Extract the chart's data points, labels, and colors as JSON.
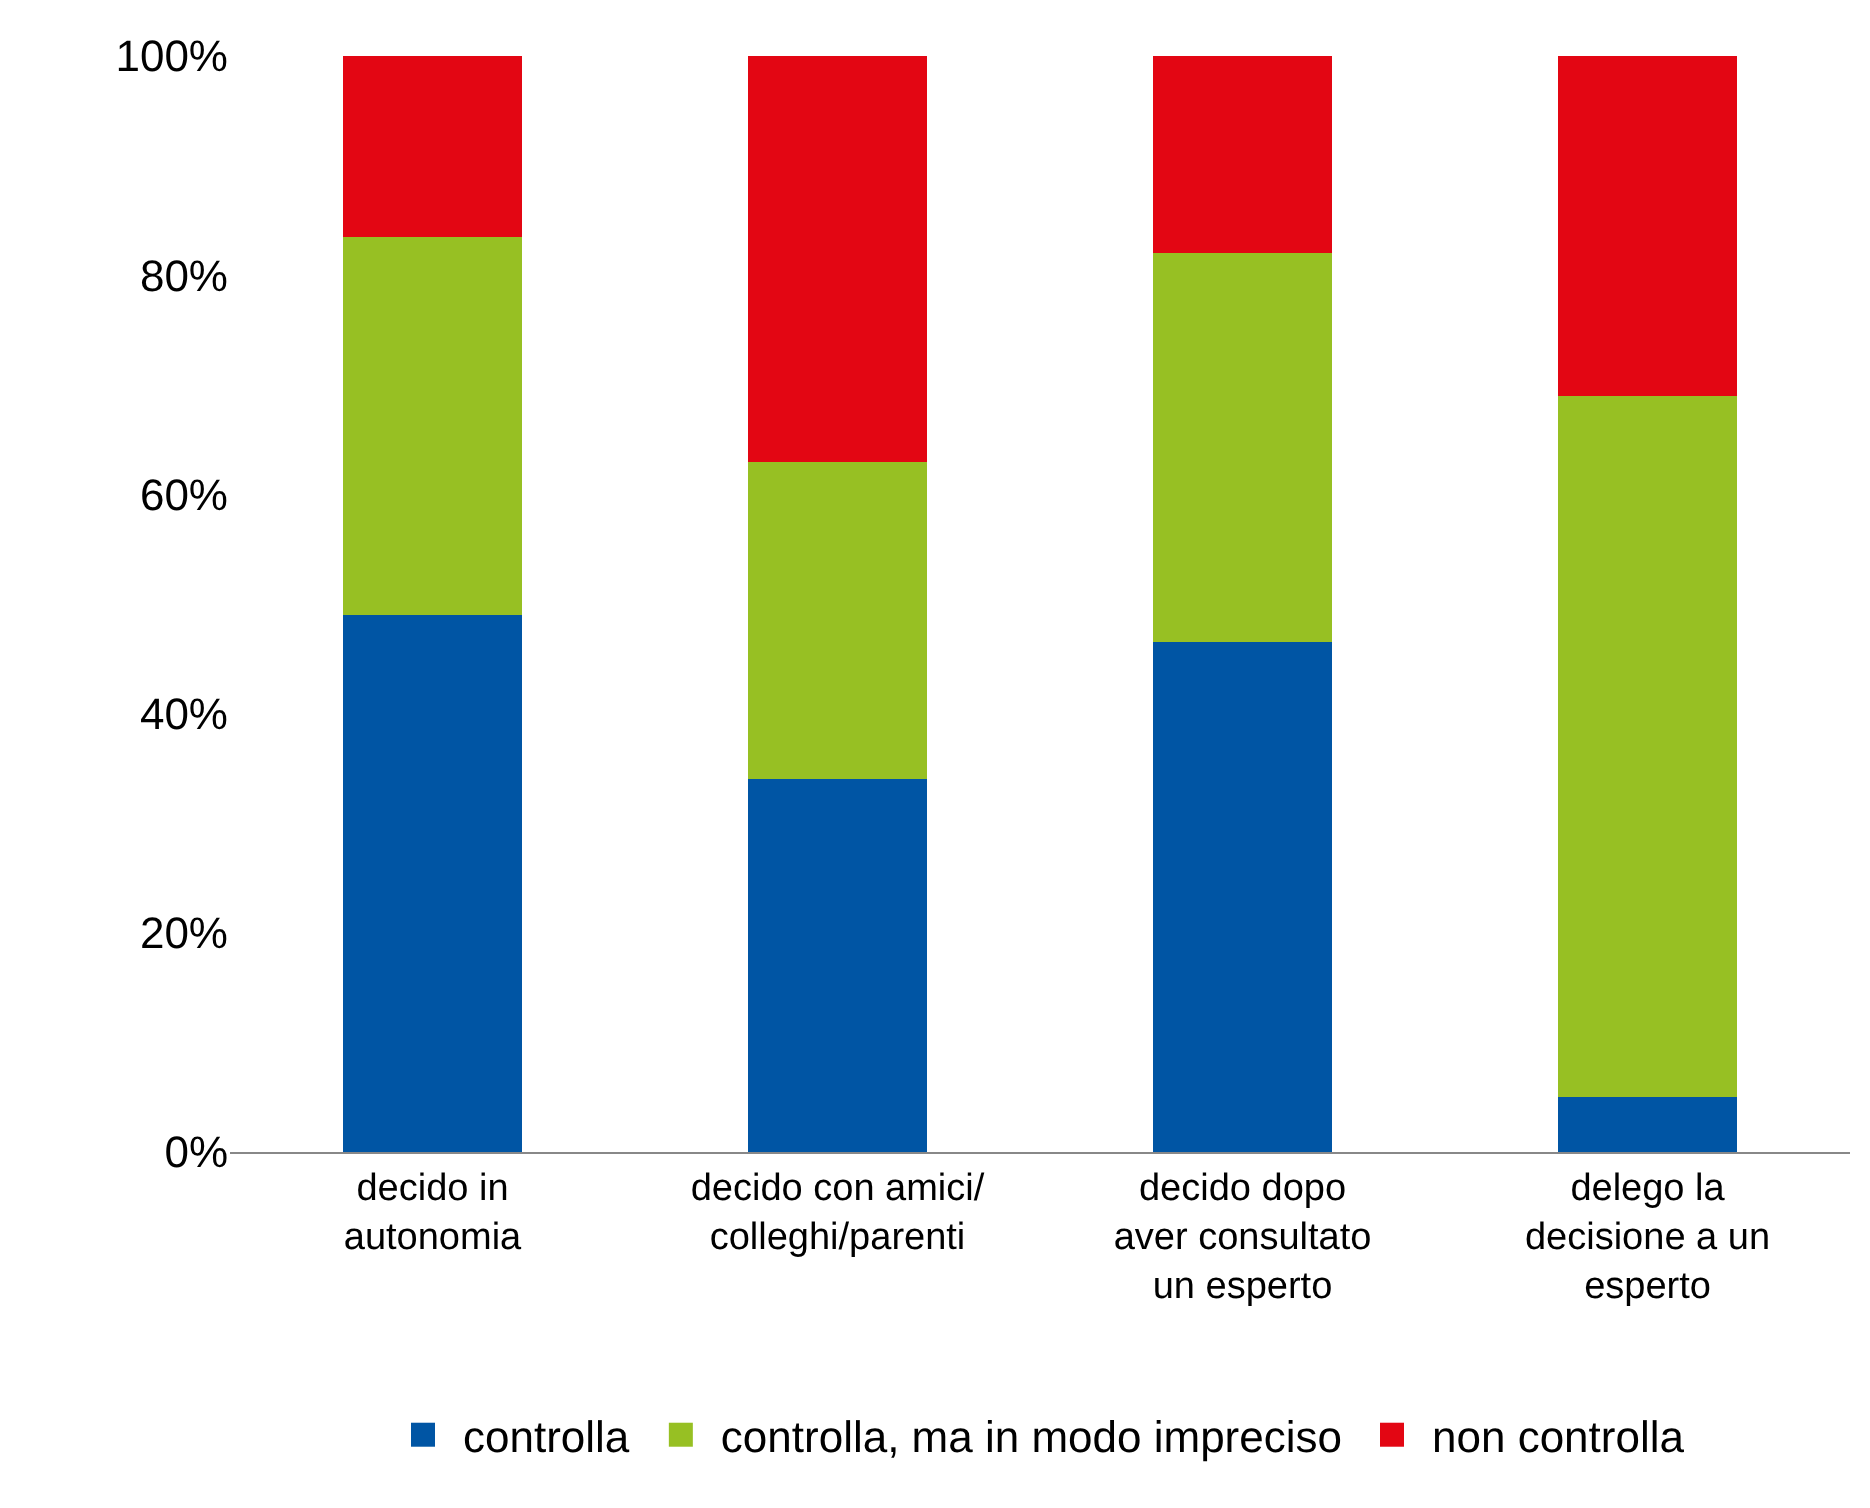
{
  "chart_data": {
    "type": "bar",
    "stacked": true,
    "categories": [
      "decido in\nautonomia",
      "decido con amici/\ncolleghi/parenti",
      "decido dopo\naver consultato\nun esperto",
      "delego la\ndecisione a un\nesperto"
    ],
    "series": [
      {
        "name": "controlla",
        "color": "#0055a4",
        "values": [
          49,
          34,
          46.5,
          5
        ]
      },
      {
        "name": "controlla, ma in modo impreciso",
        "color": "#97c023",
        "values": [
          34.5,
          29,
          35.5,
          64
        ]
      },
      {
        "name": "non controlla",
        "color": "#e30613",
        "values": [
          16.5,
          37,
          18,
          31
        ]
      }
    ],
    "ylim": [
      0,
      100
    ],
    "yticks": [
      {
        "value": 0,
        "label": "0%"
      },
      {
        "value": 20,
        "label": "20%"
      },
      {
        "value": 40,
        "label": "40%"
      },
      {
        "value": 60,
        "label": "60%"
      },
      {
        "value": 80,
        "label": "80%"
      },
      {
        "value": 100,
        "label": "100%"
      }
    ],
    "legend": "bottom"
  }
}
